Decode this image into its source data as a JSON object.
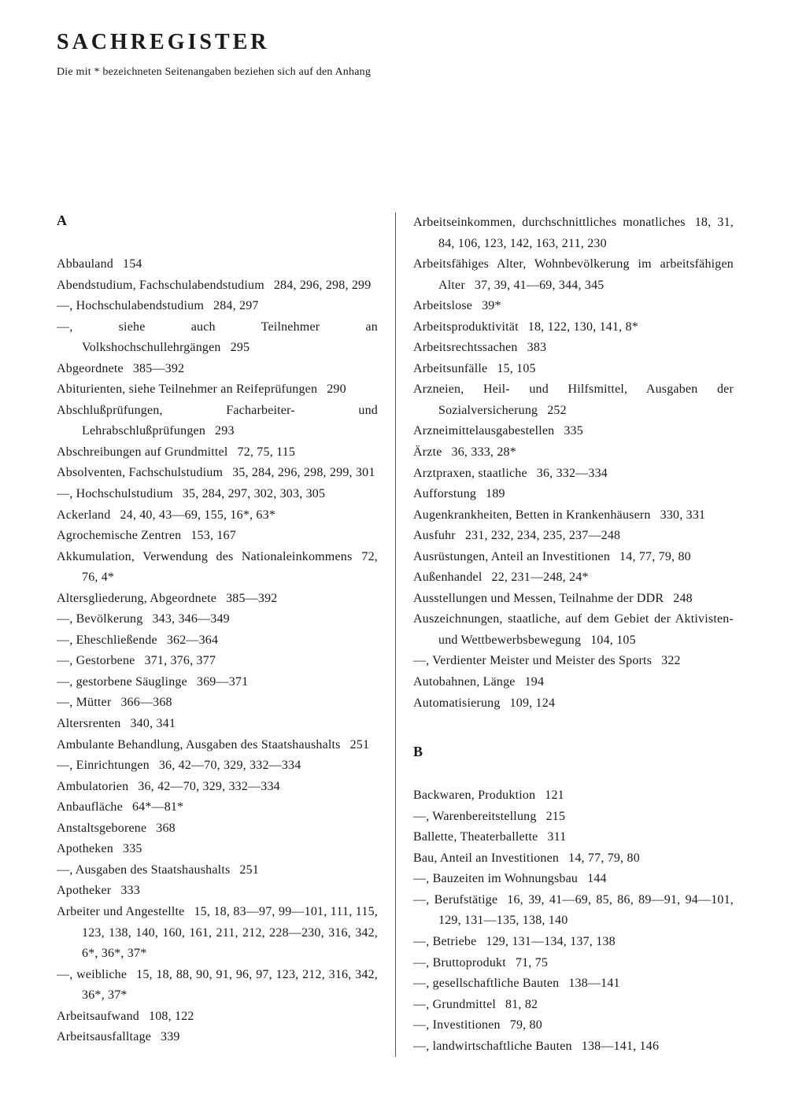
{
  "title": "SACHREGISTER",
  "subtitle": "Die mit * bezeichneten Seitenangaben beziehen sich auf den Anhang",
  "left": {
    "letter": "A",
    "items": [
      {
        "t": "Abbauland",
        "p": "154"
      },
      {
        "t": "Abendstudium, Fachschulabendstudium",
        "p": "284, 296, 298, 299"
      },
      {
        "t": "—, Hochschulabendstudium",
        "p": "284, 297"
      },
      {
        "t": "—, siehe auch Teilnehmer an Volkshochschullehrgängen",
        "p": "295"
      },
      {
        "t": "Abgeordnete",
        "p": "385—392"
      },
      {
        "t": "Abiturienten, siehe Teilnehmer an Reifeprüfungen",
        "p": "290"
      },
      {
        "t": "Abschlußprüfungen, Facharbeiter- und Lehrabschlußprüfungen",
        "p": "293"
      },
      {
        "t": "Abschreibungen auf Grundmittel",
        "p": "72, 75, 115"
      },
      {
        "t": "Absolventen, Fachschulstudium",
        "p": "35, 284, 296, 298, 299, 301"
      },
      {
        "t": "—, Hochschulstudium",
        "p": "35, 284, 297, 302, 303, 305"
      },
      {
        "t": "Ackerland",
        "p": "24, 40, 43—69, 155, 16*, 63*"
      },
      {
        "t": "Agrochemische Zentren",
        "p": "153, 167"
      },
      {
        "t": "Akkumulation, Verwendung des Nationaleinkommens",
        "p": "72, 76, 4*"
      },
      {
        "t": "Altersgliederung, Abgeordnete",
        "p": "385—392"
      },
      {
        "t": "—, Bevölkerung",
        "p": "343, 346—349"
      },
      {
        "t": "—, Eheschließende",
        "p": "362—364"
      },
      {
        "t": "—, Gestorbene",
        "p": "371, 376, 377"
      },
      {
        "t": "—, gestorbene Säuglinge",
        "p": "369—371"
      },
      {
        "t": "—, Mütter",
        "p": "366—368"
      },
      {
        "t": "Altersrenten",
        "p": "340, 341"
      },
      {
        "t": "Ambulante Behandlung, Ausgaben des Staatshaushalts",
        "p": "251"
      },
      {
        "t": "—, Einrichtungen",
        "p": "36, 42—70, 329, 332—334"
      },
      {
        "t": "Ambulatorien",
        "p": "36, 42—70, 329, 332—334"
      },
      {
        "t": "Anbaufläche",
        "p": "64*—81*"
      },
      {
        "t": "Anstaltsgeborene",
        "p": "368"
      },
      {
        "t": "Apotheken",
        "p": "335"
      },
      {
        "t": "—, Ausgaben des Staatshaushalts",
        "p": "251"
      },
      {
        "t": "Apotheker",
        "p": "333"
      },
      {
        "t": "Arbeiter und Angestellte",
        "p": "15, 18, 83—97, 99—101, 111, 115, 123, 138, 140, 160, 161, 211, 212, 228—230, 316, 342, 6*, 36*, 37*"
      },
      {
        "t": "—, weibliche",
        "p": "15, 18, 88, 90, 91, 96, 97, 123, 212, 316, 342, 36*, 37*"
      },
      {
        "t": "Arbeitsaufwand",
        "p": "108, 122"
      },
      {
        "t": "Arbeitsausfalltage",
        "p": "339"
      }
    ]
  },
  "right": {
    "letter": "B",
    "top": [
      {
        "t": "Arbeitseinkommen, durchschnittliches monatliches",
        "p": "18, 31, 84, 106, 123, 142, 163, 211, 230"
      },
      {
        "t": "Arbeitsfähiges Alter, Wohnbevölkerung im arbeitsfähigen Alter",
        "p": "37, 39, 41—69, 344, 345"
      },
      {
        "t": "Arbeitslose",
        "p": "39*"
      },
      {
        "t": "Arbeitsproduktivität",
        "p": "18, 122, 130, 141, 8*"
      },
      {
        "t": "Arbeitsrechtssachen",
        "p": "383"
      },
      {
        "t": "Arbeitsunfälle",
        "p": "15, 105"
      },
      {
        "t": "Arzneien, Heil- und Hilfsmittel, Ausgaben der Sozialversicherung",
        "p": "252"
      },
      {
        "t": "Arzneimittelausgabestellen",
        "p": "335"
      },
      {
        "t": "Ärzte",
        "p": "36, 333, 28*"
      },
      {
        "t": "Arztpraxen, staatliche",
        "p": "36, 332—334"
      },
      {
        "t": "Aufforstung",
        "p": "189"
      },
      {
        "t": "Augenkrankheiten, Betten in Krankenhäusern",
        "p": "330, 331"
      },
      {
        "t": "Ausfuhr",
        "p": "231, 232, 234, 235, 237—248"
      },
      {
        "t": "Ausrüstungen, Anteil an Investitionen",
        "p": "14, 77, 79, 80"
      },
      {
        "t": "Außenhandel",
        "p": "22, 231—248, 24*"
      },
      {
        "t": "Ausstellungen und Messen, Teilnahme der DDR",
        "p": "248"
      },
      {
        "t": "Auszeichnungen, staatliche, auf dem Gebiet der Aktivisten- und Wettbewerbsbewegung",
        "p": "104, 105"
      },
      {
        "t": "—, Verdienter Meister und Meister des Sports",
        "p": "322"
      },
      {
        "t": "Autobahnen, Länge",
        "p": "194"
      },
      {
        "t": "Automatisierung",
        "p": "109, 124"
      }
    ],
    "bottom": [
      {
        "t": "Backwaren, Produktion",
        "p": "121"
      },
      {
        "t": "—, Warenbereitstellung",
        "p": "215"
      },
      {
        "t": "Ballette, Theaterballette",
        "p": "311"
      },
      {
        "t": "Bau, Anteil an Investitionen",
        "p": "14, 77, 79, 80"
      },
      {
        "t": "—, Bauzeiten im Wohnungsbau",
        "p": "144"
      },
      {
        "t": "—, Berufstätige",
        "p": "16, 39, 41—69, 85, 86, 89—91, 94—101, 129, 131—135, 138, 140"
      },
      {
        "t": "—, Betriebe",
        "p": "129, 131—134, 137, 138"
      },
      {
        "t": "—, Bruttoprodukt",
        "p": "71, 75"
      },
      {
        "t": "—, gesellschaftliche Bauten",
        "p": "138—141"
      },
      {
        "t": "—, Grundmittel",
        "p": "81, 82"
      },
      {
        "t": "—, Investitionen",
        "p": "79, 80"
      },
      {
        "t": "—, landwirtschaftliche Bauten",
        "p": "138—141, 146"
      }
    ]
  }
}
